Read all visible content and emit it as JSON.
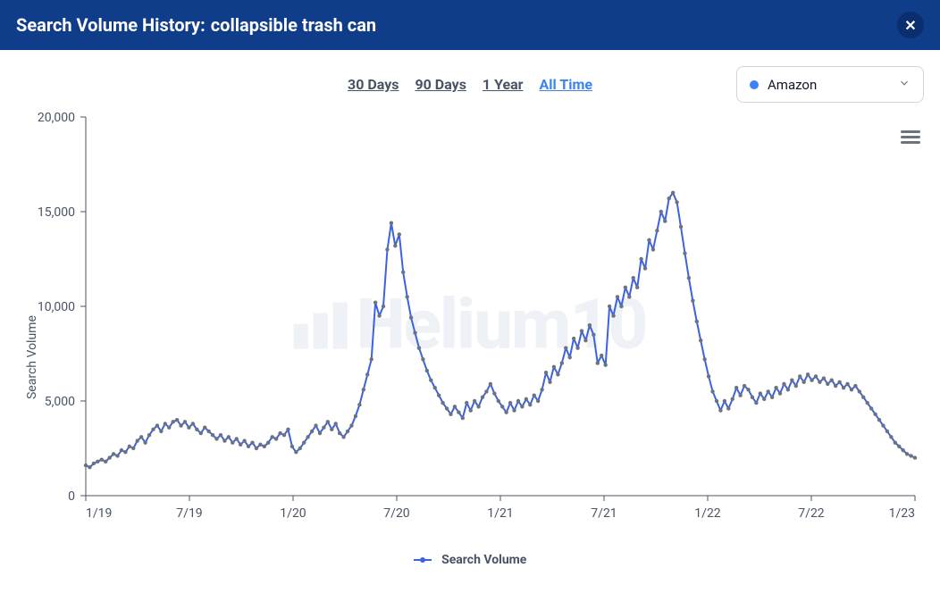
{
  "header": {
    "title_prefix": "Search Volume History:",
    "search_term": "collapsible trash can"
  },
  "time_tabs": [
    {
      "label": "30 Days",
      "active": false
    },
    {
      "label": "90 Days",
      "active": false
    },
    {
      "label": "1 Year",
      "active": false
    },
    {
      "label": "All Time",
      "active": true
    }
  ],
  "dropdown": {
    "selected_label": "Amazon",
    "dot_color": "#3b82f6"
  },
  "watermark_text": "Helium10",
  "chart": {
    "type": "line",
    "ylabel": "Search Volume",
    "ylim": [
      0,
      20000
    ],
    "ytick_step": 5000,
    "ytick_labels": [
      "0",
      "5,000",
      "10,000",
      "15,000",
      "20,000"
    ],
    "xtick_labels": [
      "1/19",
      "7/19",
      "1/20",
      "7/20",
      "1/21",
      "7/21",
      "1/22",
      "7/22",
      "1/23"
    ],
    "line_color": "#3b62e0",
    "line_width": 2,
    "marker_color": "#6b7280",
    "marker_size": 2.2,
    "background": "#ffffff",
    "axis_color": "#485365",
    "tick_fontsize": 14,
    "values": [
      1600,
      1500,
      1700,
      1800,
      1900,
      1800,
      2000,
      2200,
      2100,
      2400,
      2300,
      2600,
      2500,
      2900,
      3100,
      2800,
      3200,
      3500,
      3700,
      3400,
      3800,
      3600,
      3900,
      4000,
      3700,
      3900,
      3600,
      3800,
      3500,
      3300,
      3600,
      3400,
      3200,
      3000,
      3200,
      2900,
      3100,
      2800,
      3000,
      2700,
      2900,
      2600,
      2800,
      2500,
      2700,
      2600,
      2800,
      3100,
      3000,
      3300,
      3200,
      3500,
      2600,
      2300,
      2500,
      2800,
      3100,
      3400,
      3700,
      3300,
      3600,
      3900,
      3500,
      3800,
      3300,
      3100,
      3400,
      3700,
      4200,
      4800,
      5600,
      6400,
      7200,
      10200,
      9500,
      10000,
      13000,
      14400,
      13200,
      13800,
      11800,
      10500,
      9400,
      8600,
      7800,
      7200,
      6600,
      6100,
      5700,
      5300,
      4900,
      4600,
      4300,
      4700,
      4400,
      4100,
      4900,
      4500,
      5000,
      4700,
      5200,
      5500,
      5900,
      5400,
      5000,
      4700,
      4400,
      4900,
      4500,
      5000,
      4700,
      5100,
      4800,
      5300,
      5000,
      5600,
      6500,
      6000,
      6800,
      6400,
      7000,
      7800,
      7300,
      8300,
      7800,
      8700,
      8200,
      9000,
      8500,
      7000,
      7400,
      6900,
      10000,
      9500,
      10500,
      10000,
      11000,
      10500,
      11500,
      11000,
      12500,
      12000,
      13500,
      13000,
      14000,
      15000,
      14500,
      15700,
      16000,
      15500,
      14200,
      12800,
      11500,
      10300,
      9200,
      8200,
      7200,
      6300,
      5500,
      5000,
      4500,
      5000,
      4600,
      5100,
      5700,
      5300,
      5800,
      5600,
      5200,
      4900,
      5400,
      5100,
      5500,
      5200,
      5700,
      5400,
      5900,
      5600,
      6100,
      5800,
      6300,
      6000,
      6400,
      6100,
      6300,
      6000,
      6200,
      5900,
      6100,
      5800,
      6000,
      5700,
      5900,
      5600,
      5800,
      5500,
      5200,
      4900,
      4600,
      4300,
      4000,
      3700,
      3400,
      3100,
      2800,
      2600,
      2400,
      2200,
      2100,
      2000
    ],
    "legend_label": "Search Volume"
  }
}
